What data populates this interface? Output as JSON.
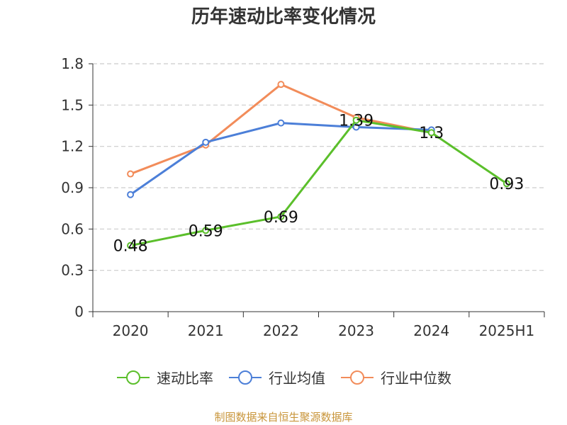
{
  "chart_data": {
    "type": "line",
    "title": "历年速动比率变化情况",
    "categories": [
      "2020",
      "2021",
      "2022",
      "2023",
      "2024",
      "2025H1"
    ],
    "yticks": [
      "0",
      "0.3",
      "0.6",
      "0.9",
      "1.2",
      "1.5",
      "1.8"
    ],
    "ylim": [
      0,
      1.8
    ],
    "grid": true,
    "legend_position": "bottom",
    "series": [
      {
        "name": "速动比率",
        "color": "#5bbf2b",
        "values": [
          0.48,
          0.59,
          0.69,
          1.39,
          1.3,
          0.93
        ],
        "labels": [
          "0.48",
          "0.59",
          "0.69",
          "1.39",
          "1.3",
          "0.93"
        ]
      },
      {
        "name": "行业均值",
        "color": "#4c7fd8",
        "values": [
          0.85,
          1.23,
          1.37,
          1.34,
          1.32,
          null
        ]
      },
      {
        "name": "行业中位数",
        "color": "#f28c5a",
        "values": [
          1.0,
          1.21,
          1.65,
          1.41,
          1.3,
          null
        ]
      }
    ]
  },
  "footer": {
    "source": "制图数据来自恒生聚源数据库"
  }
}
